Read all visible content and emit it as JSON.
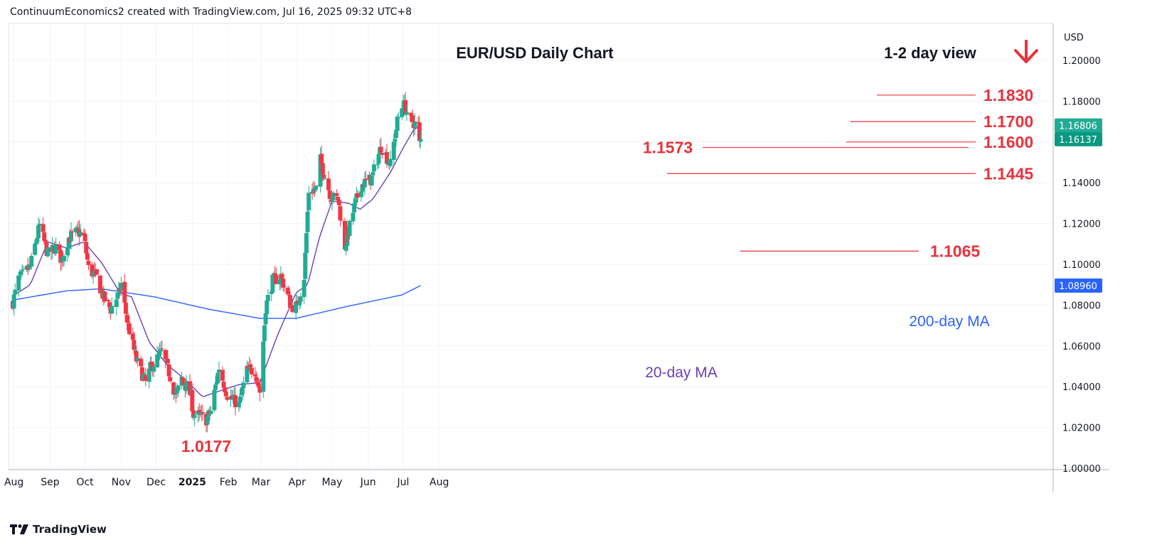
{
  "header": {
    "text": "ContinuumEconomics2 created with TradingView.com, Jul 16, 2025 09:32 UTC+8"
  },
  "footer": {
    "brand": "TradingView"
  },
  "colors": {
    "bull": "#22ab94",
    "bear": "#f23645",
    "ma20": "#6b3fb6",
    "ma200": "#2962ff",
    "level": "#e8333c",
    "grid": "#f0f3fa"
  },
  "chart_data": {
    "type": "candlestick",
    "title": "EUR/USD Daily Chart",
    "view_label": "1-2 day view",
    "view_direction": "down",
    "currency": "USD",
    "ylim": [
      1.0,
      1.21
    ],
    "y_ticks": [
      "1.20000",
      "1.18000",
      "1.16000",
      "1.14000",
      "1.12000",
      "1.10000",
      "1.08000",
      "1.06000",
      "1.04000",
      "1.02000",
      "1.00000"
    ],
    "x_ticks": [
      "Aug",
      "Sep",
      "Oct",
      "Nov",
      "Dec",
      "2025",
      "Feb",
      "Mar",
      "Apr",
      "May",
      "Jun",
      "Jul",
      "Aug"
    ],
    "price_labels": [
      {
        "value": "1.16806",
        "price": 1.16806,
        "color": "#22ab94"
      },
      {
        "value": "1.16137",
        "price": 1.16137,
        "color": "#089981"
      },
      {
        "value": "1.08960",
        "price": 1.0896,
        "color": "#2962ff"
      }
    ],
    "levels": [
      {
        "label": "1.1830",
        "price": 1.183
      },
      {
        "label": "1.1700",
        "price": 1.17
      },
      {
        "label": "1.1600",
        "price": 1.16
      },
      {
        "label": "1.1573",
        "price": 1.1573
      },
      {
        "label": "1.1445",
        "price": 1.1445
      },
      {
        "label": "1.1065",
        "price": 1.1065
      },
      {
        "label": "1.0177",
        "price": 1.0177
      }
    ],
    "series_labels": {
      "ma20": "20-day MA",
      "ma200": "200-day MA"
    },
    "anchors": [
      [
        "2024-07-31",
        1.0815
      ],
      [
        "2024-08-05",
        1.0925
      ],
      [
        "2024-08-15",
        1.099
      ],
      [
        "2024-08-23",
        1.119
      ],
      [
        "2024-08-30",
        1.105
      ],
      [
        "2024-09-06",
        1.1085
      ],
      [
        "2024-09-11",
        1.102
      ],
      [
        "2024-09-17",
        1.113
      ],
      [
        "2024-09-25",
        1.116
      ],
      [
        "2024-09-30",
        1.1135
      ],
      [
        "2024-10-04",
        1.098
      ],
      [
        "2024-10-11",
        1.0935
      ],
      [
        "2024-10-17",
        1.0835
      ],
      [
        "2024-10-23",
        1.078
      ],
      [
        "2024-10-30",
        1.0855
      ],
      [
        "2024-11-01",
        1.0905
      ],
      [
        "2024-11-06",
        1.0725
      ],
      [
        "2024-11-14",
        1.053
      ],
      [
        "2024-11-22",
        1.042
      ],
      [
        "2024-11-26",
        1.049
      ],
      [
        "2024-12-06",
        1.057
      ],
      [
        "2024-12-12",
        1.047
      ],
      [
        "2024-12-18",
        1.035
      ],
      [
        "2024-12-23",
        1.044
      ],
      [
        "2024-12-31",
        1.0355
      ],
      [
        "2025-01-02",
        1.0265
      ],
      [
        "2025-01-10",
        1.025
      ],
      [
        "2025-01-13",
        1.024
      ],
      [
        "2025-01-17",
        1.028
      ],
      [
        "2025-01-24",
        1.0495
      ],
      [
        "2025-01-31",
        1.036
      ],
      [
        "2025-02-03",
        1.0345
      ],
      [
        "2025-02-10",
        1.031
      ],
      [
        "2025-02-17",
        1.048
      ],
      [
        "2025-02-24",
        1.048
      ],
      [
        "2025-02-28",
        1.0375
      ],
      [
        "2025-03-05",
        1.079
      ],
      [
        "2025-03-11",
        1.092
      ],
      [
        "2025-03-18",
        1.094
      ],
      [
        "2025-03-27",
        1.0795
      ],
      [
        "2025-04-01",
        1.0795
      ],
      [
        "2025-04-07",
        1.094
      ],
      [
        "2025-04-11",
        1.136
      ],
      [
        "2025-04-18",
        1.137
      ],
      [
        "2025-04-21",
        1.151
      ],
      [
        "2025-04-30",
        1.133
      ],
      [
        "2025-05-06",
        1.132
      ],
      [
        "2025-05-12",
        1.109
      ],
      [
        "2025-05-20",
        1.128
      ],
      [
        "2025-05-26",
        1.139
      ],
      [
        "2025-06-04",
        1.142
      ],
      [
        "2025-06-12",
        1.158
      ],
      [
        "2025-06-20",
        1.149
      ],
      [
        "2025-06-26",
        1.17
      ],
      [
        "2025-07-01",
        1.179
      ],
      [
        "2025-07-07",
        1.171
      ],
      [
        "2025-07-11",
        1.169
      ],
      [
        "2025-07-14",
        1.168
      ],
      [
        "2025-07-15",
        1.1605
      ],
      [
        "2025-07-16",
        1.1614
      ]
    ],
    "ma20_anchors": [
      [
        "2024-07-31",
        1.0845
      ],
      [
        "2024-08-15",
        1.09
      ],
      [
        "2024-08-30",
        1.111
      ],
      [
        "2024-09-15",
        1.108
      ],
      [
        "2024-09-30",
        1.111
      ],
      [
        "2024-10-15",
        1.101
      ],
      [
        "2024-10-31",
        1.086
      ],
      [
        "2024-11-10",
        1.084
      ],
      [
        "2024-11-25",
        1.062
      ],
      [
        "2024-12-10",
        1.051
      ],
      [
        "2024-12-25",
        1.044
      ],
      [
        "2025-01-10",
        1.035
      ],
      [
        "2025-01-25",
        1.038
      ],
      [
        "2025-02-10",
        1.041
      ],
      [
        "2025-02-28",
        1.042
      ],
      [
        "2025-03-15",
        1.065
      ],
      [
        "2025-03-31",
        1.086
      ],
      [
        "2025-04-10",
        1.09
      ],
      [
        "2025-04-20",
        1.113
      ],
      [
        "2025-05-01",
        1.131
      ],
      [
        "2025-05-15",
        1.13
      ],
      [
        "2025-05-25",
        1.127
      ],
      [
        "2025-06-05",
        1.132
      ],
      [
        "2025-06-20",
        1.145
      ],
      [
        "2025-06-30",
        1.156
      ],
      [
        "2025-07-10",
        1.166
      ],
      [
        "2025-07-16",
        1.1681
      ]
    ],
    "ma200_anchors": [
      [
        "2024-07-31",
        1.0825
      ],
      [
        "2024-09-15",
        1.087
      ],
      [
        "2024-10-15",
        1.088
      ],
      [
        "2024-11-30",
        1.084
      ],
      [
        "2025-01-15",
        1.078
      ],
      [
        "2025-02-28",
        1.0735
      ],
      [
        "2025-03-31",
        1.0735
      ],
      [
        "2025-05-15",
        1.0795
      ],
      [
        "2025-06-30",
        1.085
      ],
      [
        "2025-07-16",
        1.0896
      ]
    ]
  }
}
